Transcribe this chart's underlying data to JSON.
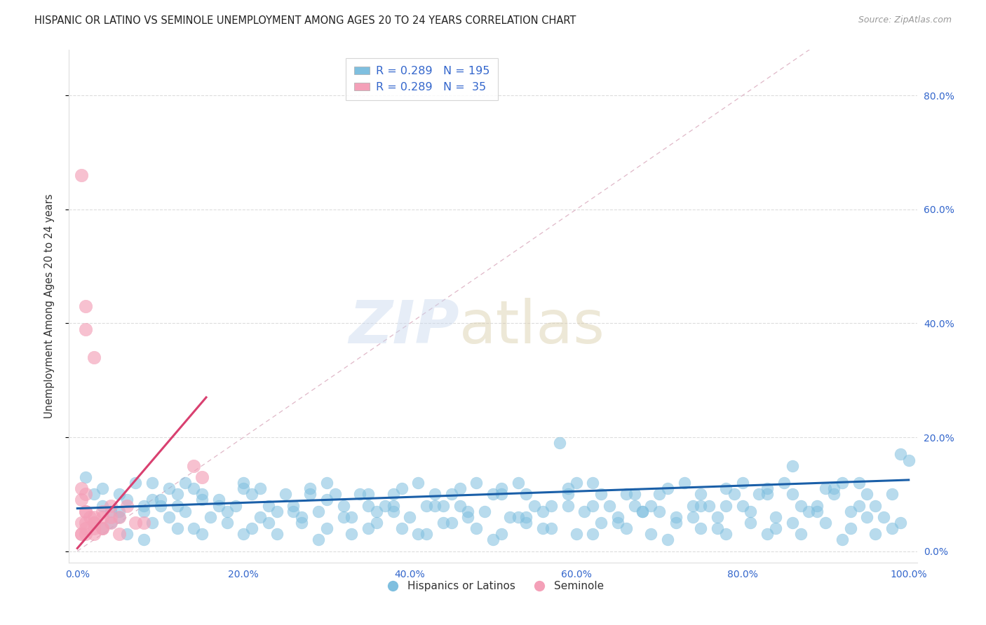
{
  "title": "HISPANIC OR LATINO VS SEMINOLE UNEMPLOYMENT AMONG AGES 20 TO 24 YEARS CORRELATION CHART",
  "source": "Source: ZipAtlas.com",
  "ylabel": "Unemployment Among Ages 20 to 24 years",
  "xlim": [
    -0.01,
    1.01
  ],
  "ylim": [
    -0.02,
    0.88
  ],
  "xticks": [
    0.0,
    0.2,
    0.4,
    0.6,
    0.8,
    1.0
  ],
  "xticklabels": [
    "0.0%",
    "20.0%",
    "40.0%",
    "60.0%",
    "80.0%",
    "100.0%"
  ],
  "yticks": [
    0.0,
    0.2,
    0.4,
    0.6,
    0.8
  ],
  "right_yticklabels": [
    "0.0%",
    "20.0%",
    "40.0%",
    "60.0%",
    "80.0%"
  ],
  "legend_labels": [
    "Hispanics or Latinos",
    "Seminole"
  ],
  "legend_R": [
    0.289,
    0.289
  ],
  "legend_N": [
    195,
    35
  ],
  "blue_color": "#7fbfdf",
  "pink_color": "#f4a0b8",
  "blue_line_color": "#1a5fa8",
  "pink_line_color": "#d94070",
  "diag_color": "#cccccc",
  "axis_color": "#3366cc",
  "grid_color": "#dddddd",
  "blue_scatter_x": [
    0.02,
    0.04,
    0.01,
    0.03,
    0.05,
    0.06,
    0.03,
    0.04,
    0.07,
    0.08,
    0.05,
    0.09,
    0.1,
    0.11,
    0.08,
    0.12,
    0.09,
    0.13,
    0.1,
    0.15,
    0.12,
    0.14,
    0.16,
    0.17,
    0.13,
    0.18,
    0.15,
    0.19,
    0.2,
    0.22,
    0.21,
    0.23,
    0.24,
    0.25,
    0.2,
    0.26,
    0.22,
    0.27,
    0.28,
    0.3,
    0.29,
    0.31,
    0.32,
    0.28,
    0.33,
    0.34,
    0.3,
    0.35,
    0.36,
    0.38,
    0.37,
    0.39,
    0.4,
    0.35,
    0.41,
    0.42,
    0.38,
    0.43,
    0.44,
    0.46,
    0.45,
    0.47,
    0.48,
    0.43,
    0.49,
    0.5,
    0.46,
    0.51,
    0.52,
    0.54,
    0.53,
    0.55,
    0.56,
    0.51,
    0.57,
    0.58,
    0.54,
    0.59,
    0.6,
    0.62,
    0.61,
    0.63,
    0.64,
    0.59,
    0.65,
    0.66,
    0.62,
    0.67,
    0.68,
    0.7,
    0.69,
    0.71,
    0.72,
    0.67,
    0.73,
    0.74,
    0.7,
    0.75,
    0.76,
    0.78,
    0.77,
    0.79,
    0.8,
    0.75,
    0.81,
    0.82,
    0.78,
    0.83,
    0.84,
    0.86,
    0.85,
    0.87,
    0.88,
    0.83,
    0.89,
    0.9,
    0.86,
    0.91,
    0.92,
    0.94,
    0.93,
    0.95,
    0.96,
    0.91,
    0.97,
    0.98,
    0.94,
    0.99,
    1.0,
    0.03,
    0.06,
    0.09,
    0.12,
    0.15,
    0.18,
    0.21,
    0.24,
    0.27,
    0.3,
    0.33,
    0.36,
    0.39,
    0.42,
    0.45,
    0.48,
    0.51,
    0.54,
    0.57,
    0.6,
    0.63,
    0.66,
    0.69,
    0.72,
    0.75,
    0.78,
    0.81,
    0.84,
    0.87,
    0.9,
    0.93,
    0.96,
    0.99,
    0.05,
    0.08,
    0.11,
    0.14,
    0.17,
    0.2,
    0.23,
    0.26,
    0.29,
    0.32,
    0.35,
    0.38,
    0.41,
    0.44,
    0.47,
    0.5,
    0.53,
    0.56,
    0.59,
    0.62,
    0.65,
    0.68,
    0.71,
    0.74,
    0.77,
    0.8,
    0.83,
    0.86,
    0.89,
    0.92,
    0.95,
    0.98
  ],
  "blue_scatter_y": [
    0.1,
    0.07,
    0.13,
    0.08,
    0.06,
    0.09,
    0.11,
    0.05,
    0.12,
    0.08,
    0.1,
    0.09,
    0.08,
    0.11,
    0.07,
    0.1,
    0.12,
    0.07,
    0.09,
    0.1,
    0.08,
    0.11,
    0.06,
    0.09,
    0.12,
    0.07,
    0.09,
    0.08,
    0.11,
    0.06,
    0.1,
    0.08,
    0.07,
    0.1,
    0.12,
    0.08,
    0.11,
    0.06,
    0.1,
    0.09,
    0.07,
    0.1,
    0.08,
    0.11,
    0.06,
    0.1,
    0.12,
    0.08,
    0.07,
    0.1,
    0.08,
    0.11,
    0.06,
    0.1,
    0.12,
    0.08,
    0.07,
    0.1,
    0.08,
    0.11,
    0.1,
    0.06,
    0.12,
    0.08,
    0.07,
    0.1,
    0.08,
    0.11,
    0.06,
    0.1,
    0.12,
    0.08,
    0.07,
    0.1,
    0.08,
    0.19,
    0.06,
    0.1,
    0.12,
    0.08,
    0.07,
    0.1,
    0.08,
    0.11,
    0.06,
    0.1,
    0.12,
    0.08,
    0.07,
    0.1,
    0.08,
    0.11,
    0.06,
    0.1,
    0.12,
    0.08,
    0.07,
    0.1,
    0.08,
    0.11,
    0.06,
    0.1,
    0.12,
    0.08,
    0.07,
    0.1,
    0.08,
    0.11,
    0.06,
    0.1,
    0.12,
    0.08,
    0.07,
    0.1,
    0.08,
    0.11,
    0.15,
    0.1,
    0.12,
    0.08,
    0.07,
    0.1,
    0.08,
    0.11,
    0.06,
    0.1,
    0.12,
    0.17,
    0.16,
    0.04,
    0.03,
    0.05,
    0.04,
    0.03,
    0.05,
    0.04,
    0.03,
    0.05,
    0.04,
    0.03,
    0.05,
    0.04,
    0.03,
    0.05,
    0.04,
    0.03,
    0.05,
    0.04,
    0.03,
    0.05,
    0.04,
    0.03,
    0.05,
    0.04,
    0.03,
    0.05,
    0.04,
    0.03,
    0.05,
    0.04,
    0.03,
    0.05,
    0.07,
    0.02,
    0.06,
    0.04,
    0.08,
    0.03,
    0.05,
    0.07,
    0.02,
    0.06,
    0.04,
    0.08,
    0.03,
    0.05,
    0.07,
    0.02,
    0.06,
    0.04,
    0.08,
    0.03,
    0.05,
    0.07,
    0.02,
    0.06,
    0.04,
    0.08,
    0.03,
    0.05,
    0.07,
    0.02,
    0.06,
    0.04
  ],
  "pink_scatter_x": [
    0.005,
    0.01,
    0.01,
    0.02,
    0.005,
    0.015,
    0.03,
    0.005,
    0.02,
    0.01,
    0.04,
    0.01,
    0.05,
    0.02,
    0.03,
    0.01,
    0.06,
    0.02,
    0.14,
    0.07,
    0.03,
    0.01,
    0.04,
    0.005,
    0.02,
    0.05,
    0.01,
    0.03,
    0.08,
    0.005,
    0.02,
    0.15,
    0.01,
    0.04,
    0.005
  ],
  "pink_scatter_y": [
    0.66,
    0.43,
    0.39,
    0.34,
    0.09,
    0.06,
    0.06,
    0.03,
    0.05,
    0.07,
    0.08,
    0.1,
    0.06,
    0.05,
    0.04,
    0.07,
    0.08,
    0.06,
    0.15,
    0.05,
    0.04,
    0.03,
    0.06,
    0.05,
    0.04,
    0.03,
    0.05,
    0.07,
    0.05,
    0.11,
    0.03,
    0.13,
    0.04,
    0.05,
    0.03
  ],
  "blue_trend_x": [
    0.0,
    1.0
  ],
  "blue_trend_y": [
    0.075,
    0.125
  ],
  "pink_trend_x": [
    0.0,
    0.155
  ],
  "pink_trend_y": [
    0.005,
    0.27
  ]
}
